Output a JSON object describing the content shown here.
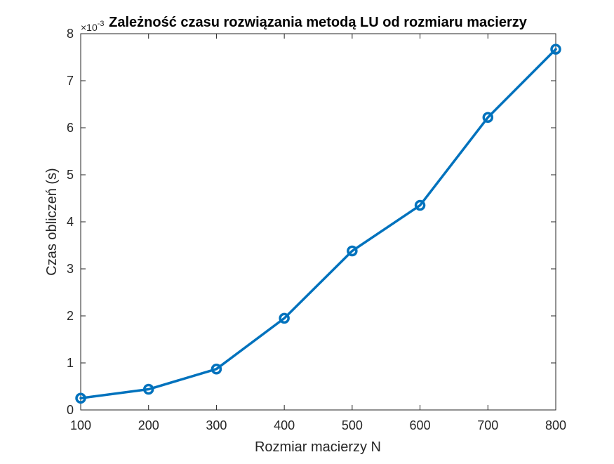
{
  "chart_data": {
    "type": "line",
    "title": "Zależność czasu rozwiązania metodą LU od rozmiaru macierzy",
    "xlabel": "Rozmiar macierzy N",
    "ylabel": "Czas obliczeń (s)",
    "y_exponent_label": "×10",
    "y_exponent_power": "-3",
    "xlim": [
      100,
      800
    ],
    "ylim": [
      0,
      8
    ],
    "x_ticks": [
      "100",
      "200",
      "300",
      "400",
      "500",
      "600",
      "700",
      "800"
    ],
    "y_ticks": [
      "0",
      "1",
      "2",
      "3",
      "4",
      "5",
      "6",
      "7",
      "8"
    ],
    "grid": false,
    "series": [
      {
        "color": "#0072BD",
        "marker": "circle",
        "x": [
          100,
          200,
          300,
          400,
          500,
          600,
          700,
          800
        ],
        "y": [
          0.25,
          0.44,
          0.87,
          1.95,
          3.38,
          4.35,
          6.22,
          7.67
        ]
      }
    ]
  }
}
